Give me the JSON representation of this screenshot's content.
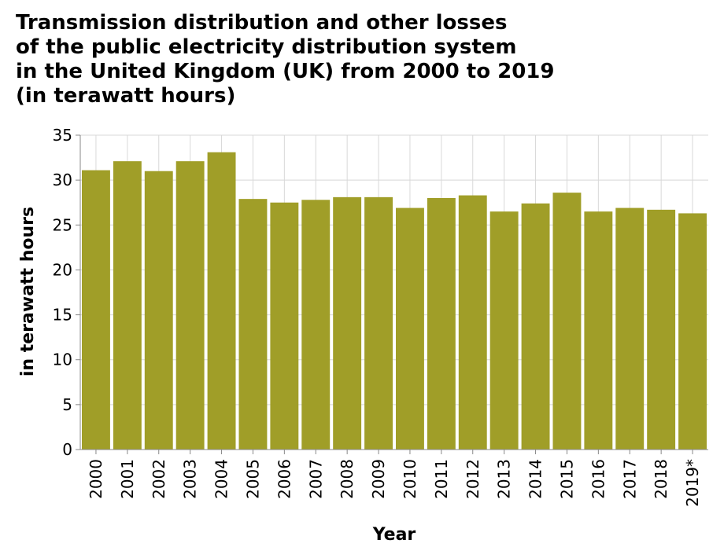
{
  "chart_data": {
    "type": "bar",
    "title_lines": [
      "Transmission distribution and other losses",
      "of the public electricity distribution system",
      "in the United Kingdom (UK) from 2000 to 2019",
      "(in terawatt hours)"
    ],
    "xlabel": "Year",
    "ylabel": "in terawatt hours",
    "categories": [
      "2000",
      "2001",
      "2002",
      "2003",
      "2004",
      "2005",
      "2006",
      "2007",
      "2008",
      "2009",
      "2010",
      "2011",
      "2012",
      "2013",
      "2014",
      "2015",
      "2016",
      "2017",
      "2018",
      "2019*"
    ],
    "values": [
      31.1,
      32.1,
      31.0,
      32.1,
      33.1,
      27.9,
      27.5,
      27.8,
      28.1,
      28.1,
      26.9,
      28.0,
      28.3,
      26.5,
      27.4,
      28.6,
      26.5,
      26.9,
      26.7,
      26.3
    ],
    "ylim": [
      0,
      35
    ],
    "yticks": [
      0,
      5,
      10,
      15,
      20,
      25,
      30,
      35
    ],
    "grid": true,
    "bar_color": "#a09e28",
    "grid_color": "#d8d8d8",
    "axis_color": "#888888"
  }
}
